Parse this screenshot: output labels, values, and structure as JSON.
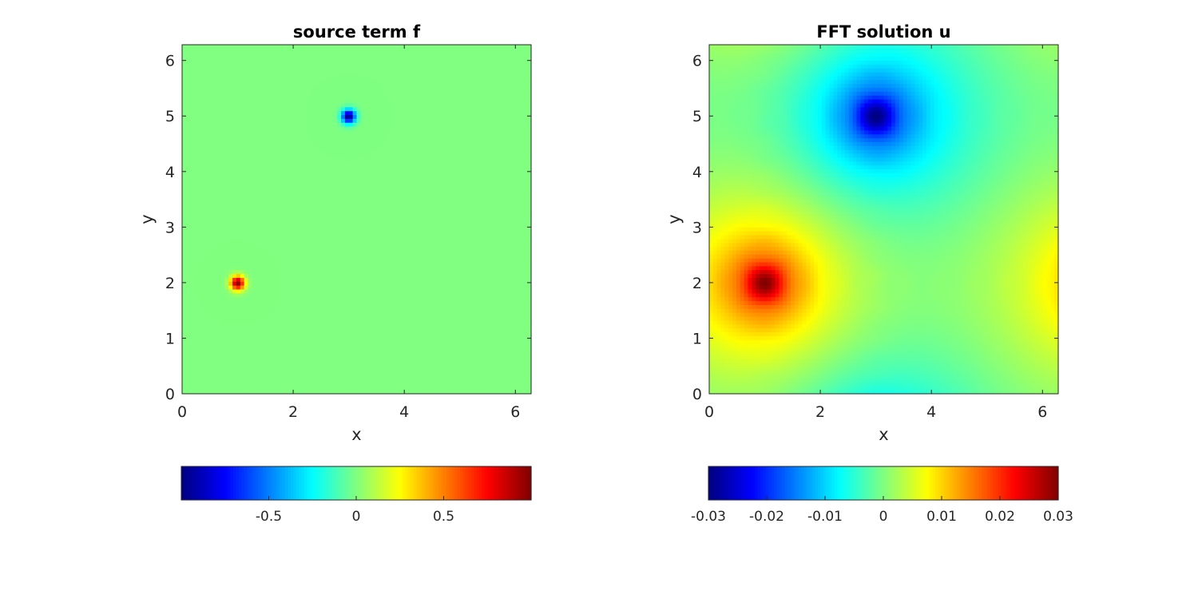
{
  "chart_data": [
    {
      "type": "heatmap",
      "title": "source term f",
      "xlabel": "x",
      "ylabel": "y",
      "xlim": [
        0,
        6.2832
      ],
      "ylim": [
        0,
        6.2832
      ],
      "xticks": [
        "0",
        "2",
        "4",
        "6"
      ],
      "yticks": [
        "0",
        "1",
        "2",
        "3",
        "4",
        "5",
        "6"
      ],
      "colormap": "jet",
      "clim": [
        -1,
        1
      ],
      "colorbar_ticks": [
        "-0.5",
        "0",
        "0.5"
      ],
      "colorbar_tick_values": [
        -0.5,
        0,
        0.5
      ],
      "colorbar_location": "southoutside",
      "sources": [
        {
          "x": 1,
          "y": 2,
          "value": 1
        },
        {
          "x": 3,
          "y": 5,
          "value": -1
        }
      ]
    },
    {
      "type": "heatmap",
      "title": "FFT solution u",
      "xlabel": "x",
      "ylabel": "y",
      "xlim": [
        0,
        6.2832
      ],
      "ylim": [
        0,
        6.2832
      ],
      "xticks": [
        "0",
        "2",
        "4",
        "6"
      ],
      "yticks": [
        "0",
        "1",
        "2",
        "3",
        "4",
        "5",
        "6"
      ],
      "colormap": "jet",
      "clim": [
        -0.03,
        0.03
      ],
      "colorbar_ticks": [
        "-0.03",
        "-0.02",
        "-0.01",
        "0",
        "0.01",
        "0.02",
        "0.03"
      ],
      "colorbar_tick_values": [
        -0.03,
        -0.02,
        -0.01,
        0,
        0.01,
        0.02,
        0.03
      ],
      "colorbar_location": "southoutside",
      "extrema": [
        {
          "x": 1,
          "y": 2,
          "value": 0.03
        },
        {
          "x": 3,
          "y": 5,
          "value": -0.03
        }
      ]
    }
  ]
}
